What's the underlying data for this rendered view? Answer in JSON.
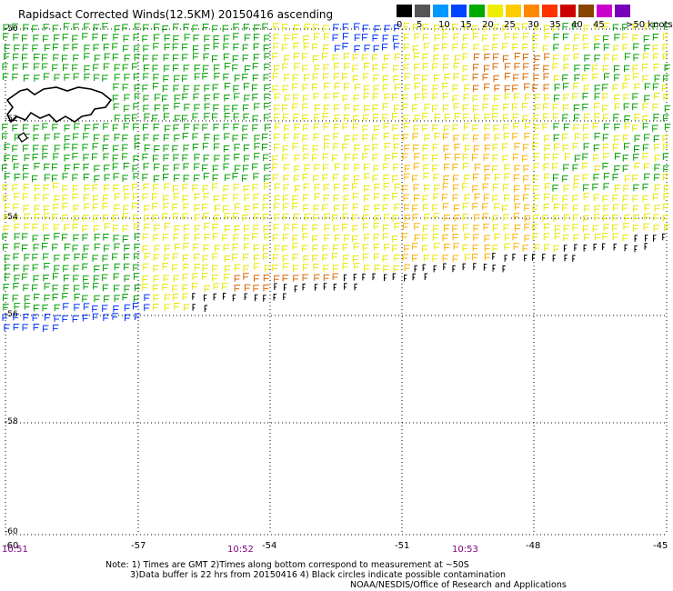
{
  "title": "Rapidsact Corrected Winds(12.5KM) 20150416 ascending",
  "legend": {
    "colors": [
      "#000000",
      "#555555",
      "#0099ff",
      "#0044ff",
      "#00aa00",
      "#eeee00",
      "#ffcc00",
      "#ff8800",
      "#ff3300",
      "#cc0000",
      "#884400",
      "#cc00cc",
      "#7700bb"
    ],
    "labels": [
      "0",
      "5",
      "10",
      "15",
      "20",
      "25",
      "30",
      "35",
      "40",
      "45",
      ">50 knots"
    ]
  },
  "lat_labels": [
    "-50",
    "-52",
    "-54",
    "-56",
    "-58",
    "-60"
  ],
  "lon_labels": [
    "-60",
    "-57",
    "-54",
    "-51",
    "-48",
    "-45"
  ],
  "time_labels": [
    "10:51",
    "10:52",
    "10:53"
  ],
  "notes": {
    "line1": "Note: 1) Times are GMT 2)Times along bottom correspond to measurement at ~50S",
    "line2": "3)Data buffer is 22 hrs from 20150416 4) Black circles indicate possible contamination",
    "line3": "NOAA/NESDIS/Office of Research and Applications"
  },
  "map": {
    "wind_colors": {
      "calm": "#000000",
      "light": "#0033ff",
      "moderate": "#00a000",
      "fresh": "#e8e800",
      "strong": "#ffb000",
      "gale": "#dd6600"
    },
    "grid": "dotted"
  }
}
